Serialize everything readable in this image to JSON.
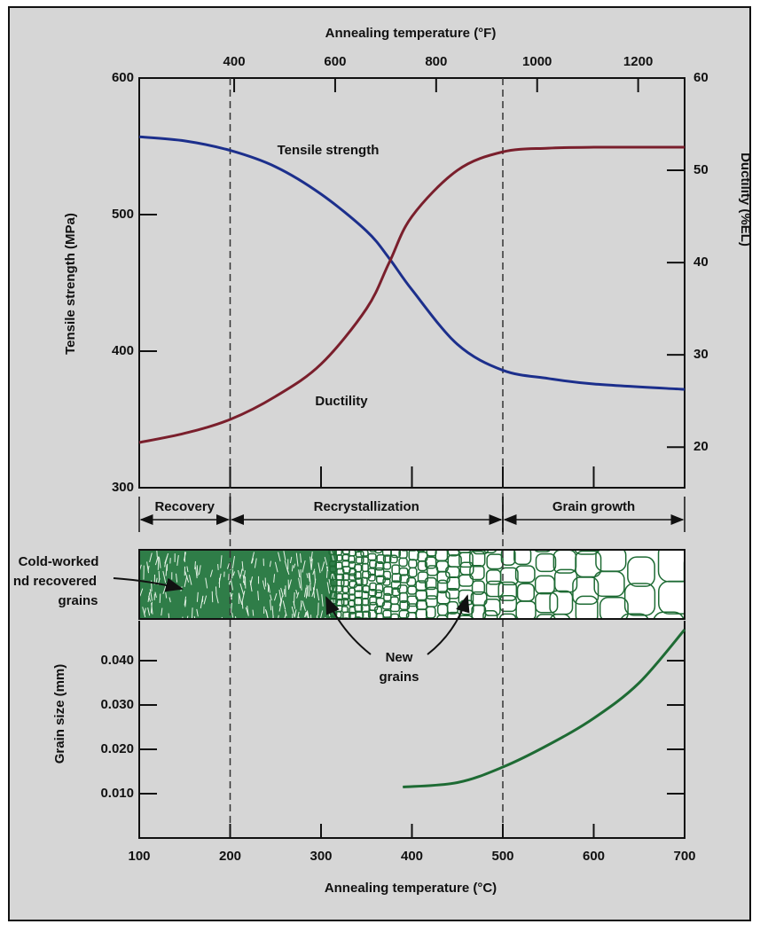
{
  "chart_data": [
    {
      "type": "line",
      "x2label": "Annealing temperature (°F)",
      "x2lim": [
        212,
        1292
      ],
      "x2ticks": [
        400,
        600,
        800,
        1000,
        1200
      ],
      "xlim": [
        100,
        700
      ],
      "ylabel": "Tensile strength (MPa)",
      "ylim": [
        300,
        600
      ],
      "yticks": [
        300,
        400,
        500,
        600
      ],
      "y2label": "Ductility (%EL)",
      "y2lim": [
        15.6,
        60
      ],
      "y2ticks": [
        20,
        30,
        40,
        50,
        60
      ],
      "x": [
        100,
        150,
        200,
        250,
        300,
        350,
        375,
        400,
        450,
        500,
        550,
        600,
        700
      ],
      "series": [
        {
          "name": "Tensile strength",
          "color": "#1c2f8c",
          "values": [
            557,
            554,
            547,
            535,
            515,
            488,
            468,
            445,
            405,
            386,
            380,
            376,
            372
          ]
        },
        {
          "name": "Ductility",
          "color": "#7a1f2c",
          "axis": "y2",
          "values": [
            20.5,
            21.5,
            23,
            25.5,
            29,
            35,
            40,
            45,
            50,
            52,
            52.4,
            52.5,
            52.5
          ]
        }
      ],
      "boundaries": [
        200,
        500
      ],
      "regions": [
        {
          "name": "Recovery",
          "from": 100,
          "to": 200
        },
        {
          "name": "Recrystallization",
          "from": 200,
          "to": 500
        },
        {
          "name": "Grain growth",
          "from": 500,
          "to": 700
        }
      ]
    },
    {
      "type": "line",
      "xlabel": "Annealing temperature (°C)",
      "xlim": [
        100,
        700
      ],
      "xticks": [
        100,
        200,
        300,
        400,
        500,
        600,
        700
      ],
      "ylabel": "Grain size (mm)",
      "ylim": [
        0,
        0.049
      ],
      "yticks": [
        {
          "value": 0.01,
          "label": "0.010"
        },
        {
          "value": 0.02,
          "label": "0.020"
        },
        {
          "value": 0.03,
          "label": "0.030"
        },
        {
          "value": 0.04,
          "label": "0.040"
        }
      ],
      "x": [
        390,
        450,
        500,
        550,
        600,
        650,
        700
      ],
      "series": [
        {
          "color": "#1e6b34",
          "values": [
            0.0115,
            0.0125,
            0.016,
            0.021,
            0.027,
            0.035,
            0.047
          ]
        }
      ],
      "annotations": {
        "cold_worked": [
          "Cold-worked",
          "nd recovered",
          "grains"
        ],
        "new_grains": [
          "New",
          "grains"
        ]
      }
    }
  ]
}
